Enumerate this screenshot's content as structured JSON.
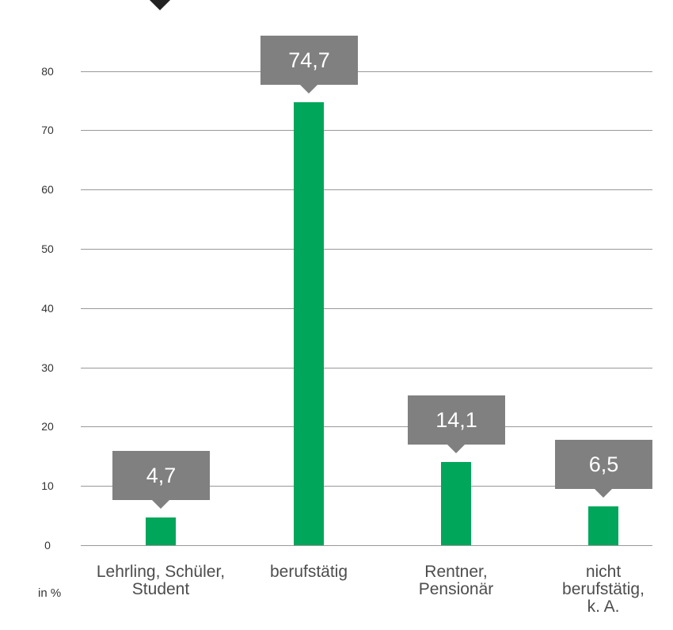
{
  "chart_data": {
    "type": "bar",
    "categories": [
      [
        "Lehrling, Schüler,",
        "Student"
      ],
      [
        "berufstätig"
      ],
      [
        "Rentner,",
        "Pensionär"
      ],
      [
        "nicht",
        "berufstätig,",
        "k. A."
      ]
    ],
    "values": [
      4.7,
      74.7,
      14.1,
      6.5
    ],
    "value_labels": [
      "4,7",
      "74,7",
      "14,1",
      "6,5"
    ],
    "y_ticks": [
      "0",
      "10",
      "20",
      "30",
      "40",
      "50",
      "60",
      "70",
      "80"
    ],
    "ylim": [
      0,
      80
    ],
    "unit_label": "in %",
    "grid": true,
    "colors": {
      "bar": "#00a65a",
      "callout": "#808080",
      "gridline": "#999999",
      "marker": "#222222"
    }
  }
}
